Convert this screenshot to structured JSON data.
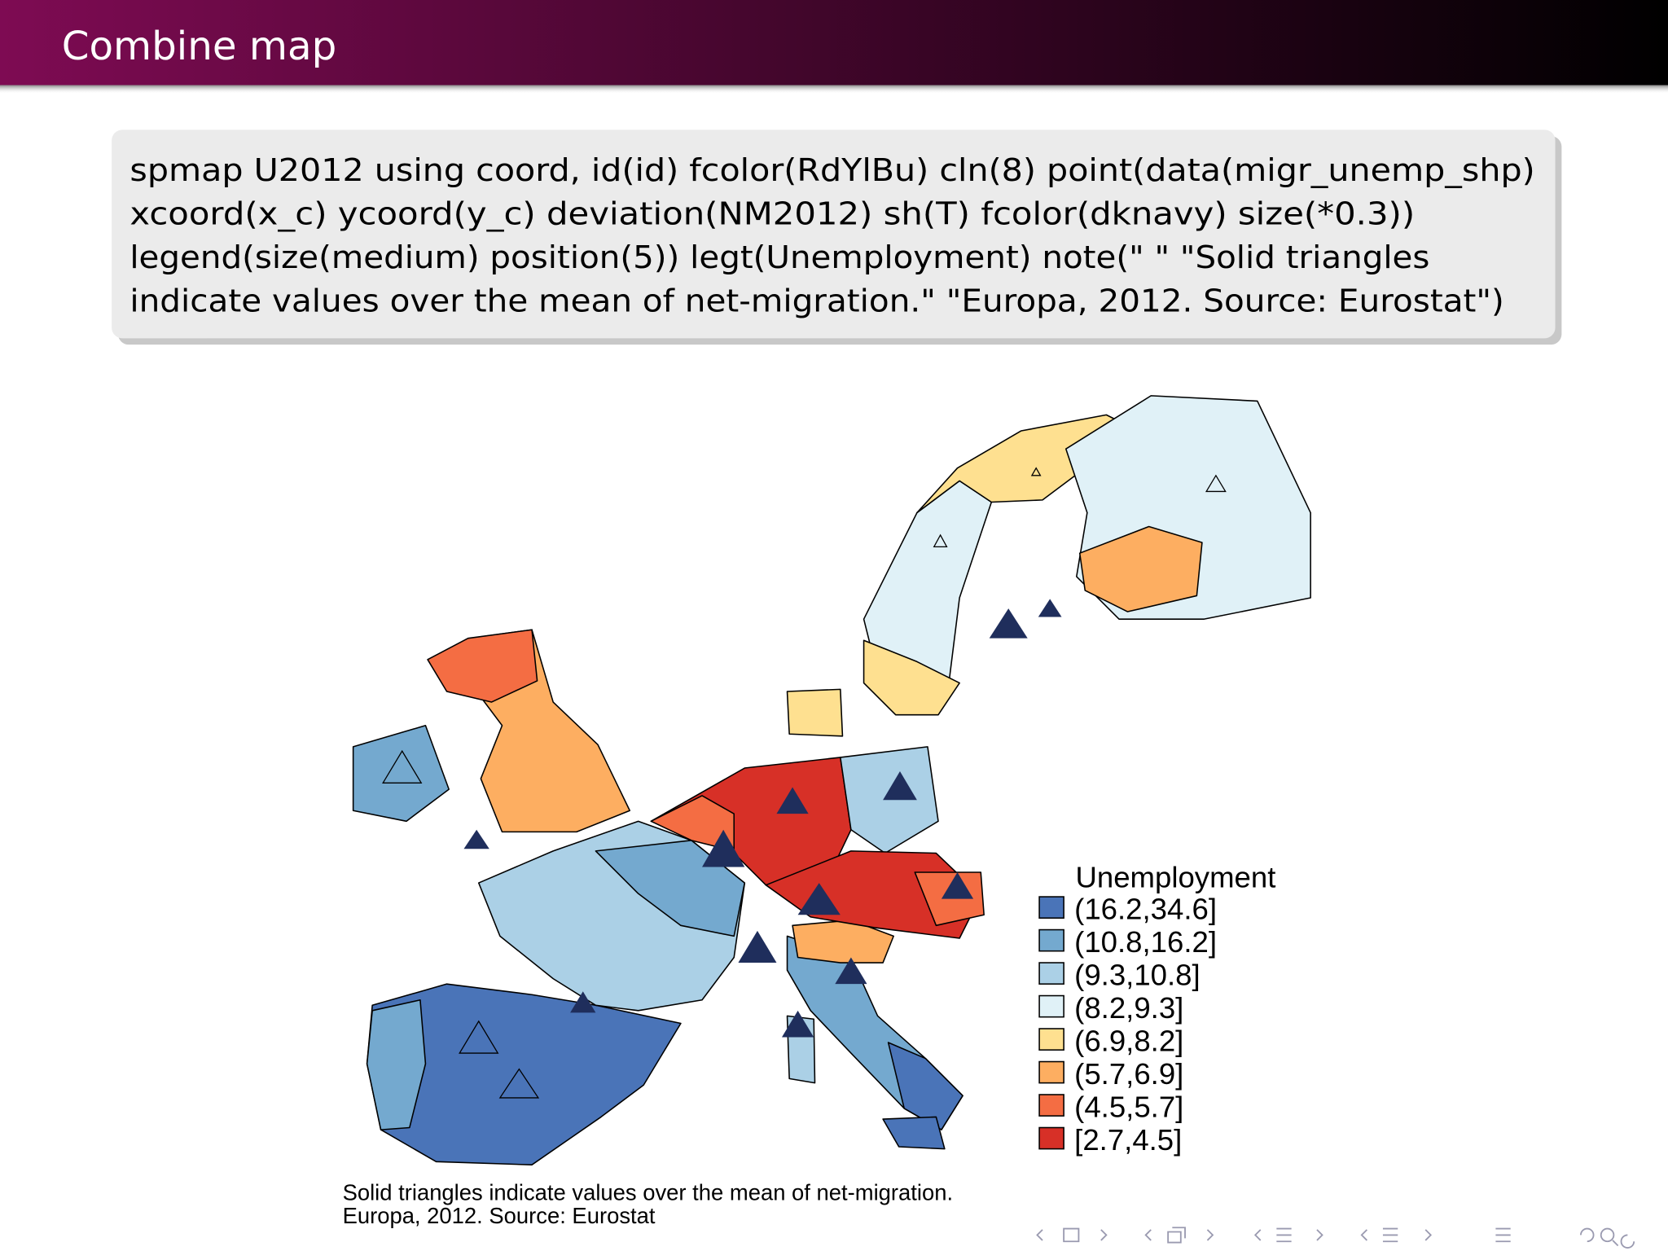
{
  "header": {
    "title": "Combine map"
  },
  "code_block": {
    "lines": [
      "spmap U2012 using coord, id(id) fcolor(RdYlBu) cln(8) point(data(migr_unemp_shp)",
      "xcoord(x_c) ycoord(y_c) deviation(NM2012) sh(T) fcolor(dknavy) size(*0.3))",
      "legend(size(medium) position(5)) legt(Unemployment) note(\" \" \"Solid triangles",
      "indicate values over the mean of net-migration.\" \"Europa, 2012. Source: Eurostat\")"
    ]
  },
  "map": {
    "legend": {
      "title": "Unemployment",
      "items": [
        {
          "label": "(16.2,34.6]",
          "color": "#4a74b8"
        },
        {
          "label": "(10.8,16.2]",
          "color": "#74a9cf"
        },
        {
          "label": "(9.3,10.8]",
          "color": "#abd0e6"
        },
        {
          "label": "(8.2,9.3]",
          "color": "#e0f1f7"
        },
        {
          "label": "(6.9,8.2]",
          "color": "#fee090"
        },
        {
          "label": "(5.7,6.9]",
          "color": "#fdae61"
        },
        {
          "label": "(4.5,5.7]",
          "color": "#f46d43"
        },
        {
          "label": "[2.7,4.5]",
          "color": "#d73027"
        }
      ]
    },
    "note": [
      "Solid triangles indicate values over the mean of net-migration.",
      "Europa, 2012. Source: Eurostat"
    ]
  }
}
